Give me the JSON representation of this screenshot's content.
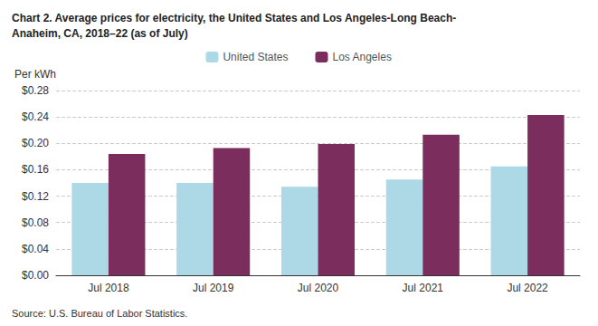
{
  "chart_data": {
    "type": "bar",
    "title": "Chart 2. Average prices for electricity, the United States and Los Angeles-Long Beach-\nAnaheim, CA, 2018–22 (as of July)",
    "y_label": "Per kWh",
    "source": "Source: U.S. Bureau of Labor Statistics.",
    "categories": [
      "Jul 2018",
      "Jul 2019",
      "Jul 2020",
      "Jul 2021",
      "Jul 2022"
    ],
    "series": [
      {
        "name": "United States",
        "color": "#add8e6",
        "values": [
          0.14,
          0.14,
          0.134,
          0.145,
          0.165
        ]
      },
      {
        "name": "Los Angeles",
        "color": "#7B2D5E",
        "values": [
          0.184,
          0.193,
          0.199,
          0.213,
          0.243
        ]
      }
    ],
    "ylim": [
      0.0,
      0.28
    ],
    "yticks": [
      {
        "value": 0.0,
        "label": "$0.00"
      },
      {
        "value": 0.04,
        "label": "$0.04"
      },
      {
        "value": 0.08,
        "label": "$0.08"
      },
      {
        "value": 0.12,
        "label": "$0.12"
      },
      {
        "value": 0.16,
        "label": "$0.16"
      },
      {
        "value": 0.2,
        "label": "$0.20"
      },
      {
        "value": 0.24,
        "label": "$0.24"
      },
      {
        "value": 0.28,
        "label": "$0.28"
      }
    ],
    "grid": true,
    "legend": "top"
  }
}
